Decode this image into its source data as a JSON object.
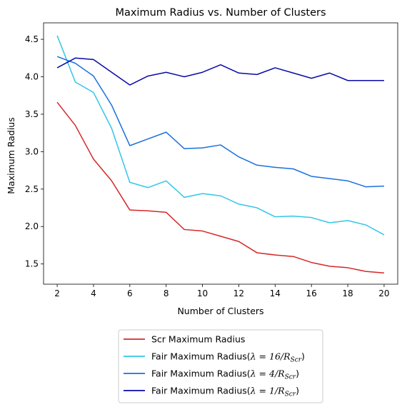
{
  "chart_data": {
    "type": "line",
    "title": "Maximum Radius vs. Number of Clusters",
    "xlabel": "Number of Clusters",
    "ylabel": "Maximum Radius",
    "x": [
      2,
      3,
      4,
      5,
      6,
      7,
      8,
      9,
      10,
      11,
      12,
      13,
      14,
      15,
      16,
      17,
      18,
      19,
      20
    ],
    "xlim": [
      1.25,
      20.75
    ],
    "ylim": [
      1.23,
      4.72
    ],
    "xticks": [
      2,
      4,
      6,
      8,
      10,
      12,
      14,
      16,
      18,
      20
    ],
    "yticks": [
      1.5,
      2.0,
      2.5,
      3.0,
      3.5,
      4.0,
      4.5
    ],
    "ytick_labels": [
      "1.5",
      "2.0",
      "2.5",
      "3.0",
      "3.5",
      "4.0",
      "4.5"
    ],
    "grid": false,
    "legend_placement": "below-center",
    "series": [
      {
        "name": "Scr Maximum Radius",
        "legend_text": "Scr Maximum Radius",
        "color": "#d62728",
        "values": [
          3.66,
          3.35,
          2.9,
          2.61,
          2.22,
          2.21,
          2.19,
          1.96,
          1.94,
          1.87,
          1.8,
          1.65,
          1.62,
          1.6,
          1.52,
          1.47,
          1.45,
          1.4,
          1.38
        ]
      },
      {
        "name": "Fair Maximum Radius(λ = 16/R_Scr)",
        "legend_text": "Fair Maximum Radius(",
        "legend_math": "λ = 16/R",
        "legend_sub": "Scr",
        "legend_close": ")",
        "color": "#33c6e6",
        "values": [
          4.55,
          3.93,
          3.79,
          3.31,
          2.59,
          2.52,
          2.61,
          2.39,
          2.44,
          2.41,
          2.3,
          2.25,
          2.13,
          2.14,
          2.12,
          2.05,
          2.08,
          2.02,
          1.89
        ]
      },
      {
        "name": "Fair Maximum Radius(λ = 4/R_Scr)",
        "legend_text": "Fair Maximum Radius(",
        "legend_math": "λ = 4/R",
        "legend_sub": "Scr",
        "legend_close": ")",
        "color": "#1a6fdf",
        "values": [
          4.27,
          4.18,
          4.01,
          3.62,
          3.08,
          3.17,
          3.26,
          3.04,
          3.05,
          3.09,
          2.93,
          2.82,
          2.79,
          2.77,
          2.67,
          2.64,
          2.61,
          2.53,
          2.54
        ]
      },
      {
        "name": "Fair Maximum Radius(λ = 1/R_Scr)",
        "legend_text": "Fair Maximum Radius(",
        "legend_math": "λ = 1/R",
        "legend_sub": "Scr",
        "legend_close": ")",
        "color": "#0a0aa8",
        "values": [
          4.12,
          4.25,
          4.23,
          4.06,
          3.89,
          4.01,
          4.06,
          4.0,
          4.06,
          4.16,
          4.05,
          4.03,
          4.12,
          4.05,
          3.98,
          4.05,
          3.95,
          3.95,
          3.95
        ]
      }
    ]
  }
}
